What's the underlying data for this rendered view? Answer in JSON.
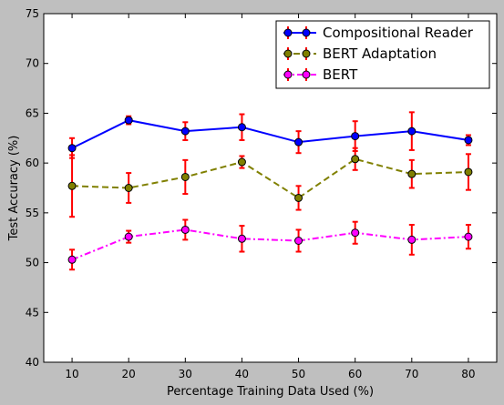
{
  "chart_data": {
    "type": "line",
    "title": "",
    "xlabel": "Percentage Training Data Used (%)",
    "ylabel": "Test Accuracy (%)",
    "xlim": [
      5,
      85
    ],
    "ylim": [
      40,
      75
    ],
    "xticks": [
      10,
      20,
      30,
      40,
      50,
      60,
      70,
      80
    ],
    "yticks": [
      40,
      45,
      50,
      55,
      60,
      65,
      70,
      75
    ],
    "grid": false,
    "legend_position": "top-right",
    "error_bar_color": "#ff0000",
    "x": [
      10,
      20,
      30,
      40,
      50,
      60,
      70,
      80
    ],
    "series": [
      {
        "name": "Compositional Reader",
        "color": "#0000ff",
        "line_style": "solid",
        "values": [
          61.5,
          64.3,
          63.2,
          63.6,
          62.1,
          62.7,
          63.2,
          62.3
        ],
        "errors": [
          1.0,
          0.4,
          0.9,
          1.3,
          1.1,
          1.5,
          1.9,
          0.5
        ]
      },
      {
        "name": "BERT Adaptation",
        "color": "#808000",
        "line_style": "dashed",
        "values": [
          57.7,
          57.5,
          58.6,
          60.1,
          56.5,
          60.4,
          58.9,
          59.1
        ],
        "errors": [
          3.1,
          1.5,
          1.7,
          0.6,
          1.2,
          1.1,
          1.4,
          1.8
        ]
      },
      {
        "name": "BERT",
        "color": "#ff00ff",
        "line_style": "dashdot",
        "values": [
          50.3,
          52.6,
          53.3,
          52.4,
          52.2,
          53.0,
          52.3,
          52.6
        ],
        "errors": [
          1.0,
          0.6,
          1.0,
          1.3,
          1.1,
          1.1,
          1.5,
          1.2
        ]
      }
    ]
  }
}
